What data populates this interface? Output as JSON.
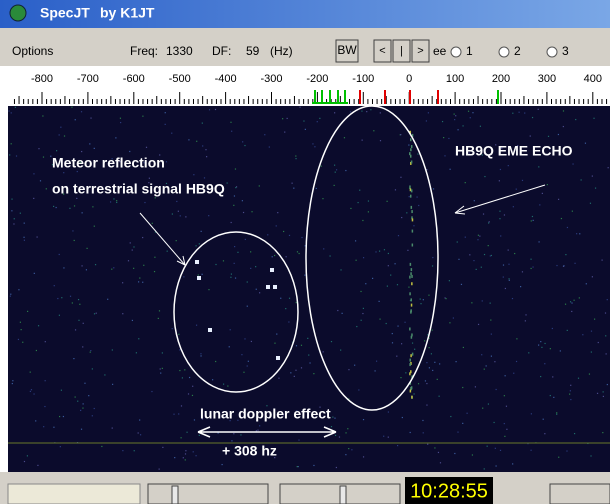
{
  "window": {
    "title": "SpecJT",
    "subtitle": "by K1JT"
  },
  "toolbar": {
    "menu": "Options",
    "freq_label": "Freq:",
    "freq": "1330",
    "df_label": "DF:",
    "df": "59",
    "unit": "(Hz)",
    "bw_button": "BW",
    "buttons": [
      "<",
      "|",
      ">"
    ],
    "speed_label": "ee",
    "radios": [
      "1",
      "2",
      "3"
    ]
  },
  "ruler": {
    "labels": [
      -800,
      -700,
      -600,
      -500,
      -400,
      -300,
      -200,
      -100,
      0,
      100,
      200,
      300,
      400
    ]
  },
  "annotations": {
    "meteor_line1": "Meteor reflection",
    "meteor_line2": "on terrestrial signal HB9Q",
    "echo": "HB9Q EME ECHO",
    "doppler": "lunar doppler effect",
    "shift": "+ 308 hz"
  },
  "status": {
    "clock": "10:28:55"
  }
}
